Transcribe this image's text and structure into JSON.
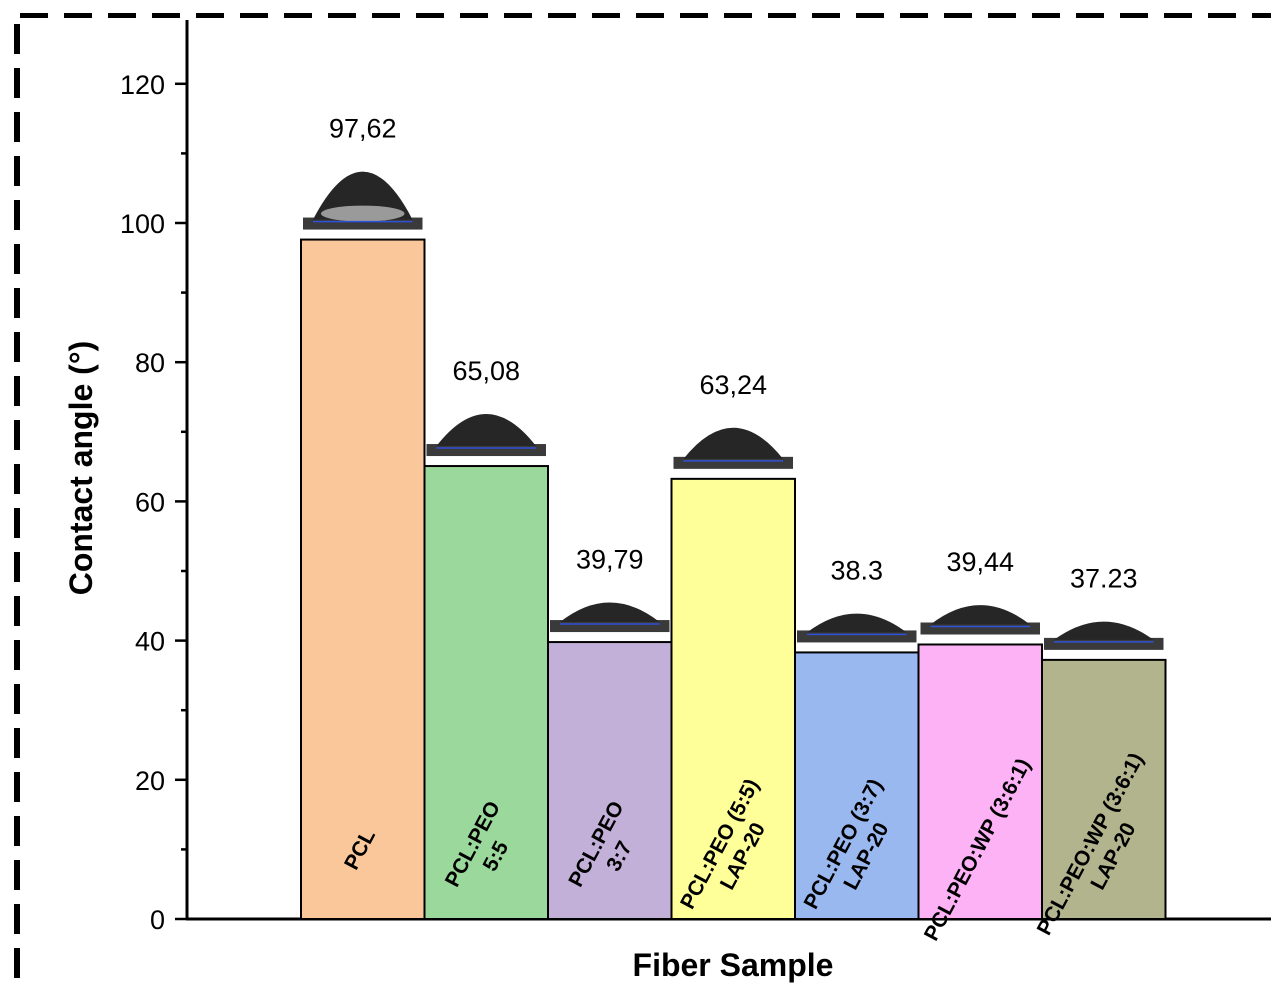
{
  "chart_data": {
    "type": "bar",
    "title": "",
    "xlabel": "Fiber Sample",
    "ylabel": "Contact angle (°)",
    "ylim": [
      0,
      128
    ],
    "yticks": [
      0,
      20,
      40,
      60,
      80,
      100,
      120
    ],
    "grid": false,
    "legend": "none",
    "categories": [
      [
        "PCL"
      ],
      [
        "PCL:PEO",
        "5:5"
      ],
      [
        "PCL:PEO",
        "3:7"
      ],
      [
        "PCL:PEO (5:5)",
        "LAP-20"
      ],
      [
        "PCL:PEO (3:7)",
        "LAP-20"
      ],
      [
        "PCL:PEO:WP (3:6:1)"
      ],
      [
        "PCL:PEO:WP (3:6:1)",
        "LAP-20"
      ]
    ],
    "values": [
      97.62,
      65.08,
      39.79,
      63.24,
      38.3,
      39.44,
      37.23
    ],
    "value_labels": [
      "97,62",
      "65,08",
      "39,79",
      "63,24",
      "38.3",
      "39,44",
      "37.23"
    ],
    "colors": [
      "#f9c79a",
      "#9bd89b",
      "#c2b0d8",
      "#ffff99",
      "#9ab8f0",
      "#fcb2f5",
      "#b1b48c"
    ]
  }
}
